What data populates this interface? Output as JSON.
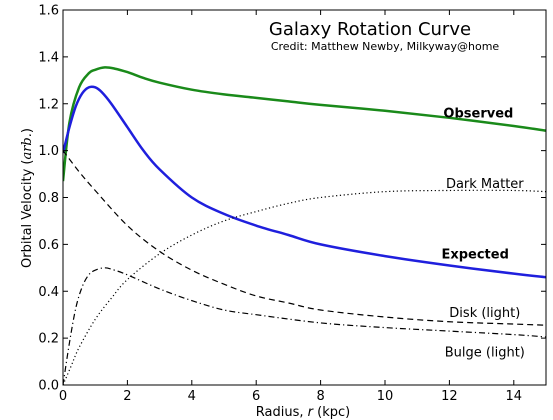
{
  "chart_data": {
    "type": "line",
    "title": "Galaxy Rotation Curve",
    "subtitle": "Credit:  Matthew Newby, Milkyway@home",
    "xlabel_prefix": "Radius, ",
    "xlabel_var": "r",
    "xlabel_suffix": " (kpc)",
    "ylabel_prefix": "Orbital Velocity (",
    "ylabel_unit": "arb.",
    "ylabel_suffix": ")",
    "xlim": [
      0,
      15
    ],
    "ylim": [
      0.0,
      1.6
    ],
    "xticks": [
      0,
      2,
      4,
      6,
      8,
      10,
      12,
      14
    ],
    "xtick_labels": [
      "0",
      "2",
      "4",
      "6",
      "8",
      "10",
      "12",
      "14"
    ],
    "yticks": [
      0.0,
      0.2,
      0.4,
      0.6,
      0.8,
      1.0,
      1.2,
      1.4,
      1.6
    ],
    "ytick_labels": [
      "0.0",
      "0.2",
      "0.4",
      "0.6",
      "0.8",
      "1.0",
      "1.2",
      "1.4",
      "1.6"
    ],
    "grid": false,
    "series": [
      {
        "name": "Observed",
        "color": "#1a8a1a",
        "style": "solid",
        "width": 2.5,
        "label_bold": true,
        "x": [
          0,
          0.2,
          0.5,
          0.8,
          1.0,
          1.3,
          1.6,
          2,
          2.5,
          3,
          4,
          5,
          6,
          7,
          8,
          10,
          12,
          14,
          15
        ],
        "y": [
          0.87,
          1.12,
          1.27,
          1.33,
          1.345,
          1.355,
          1.35,
          1.335,
          1.31,
          1.29,
          1.26,
          1.24,
          1.225,
          1.21,
          1.195,
          1.17,
          1.14,
          1.105,
          1.085
        ]
      },
      {
        "name": "Expected",
        "color": "#1f1fdd",
        "style": "solid",
        "width": 2.5,
        "label_bold": true,
        "x": [
          0,
          0.2,
          0.4,
          0.6,
          0.8,
          1.0,
          1.2,
          1.5,
          2,
          2.5,
          3,
          4,
          5,
          6,
          7,
          8,
          10,
          12,
          14,
          15
        ],
        "y": [
          0.99,
          1.1,
          1.19,
          1.245,
          1.27,
          1.27,
          1.25,
          1.2,
          1.1,
          1.0,
          0.92,
          0.8,
          0.73,
          0.68,
          0.64,
          0.6,
          0.55,
          0.51,
          0.475,
          0.46
        ]
      },
      {
        "name": "Dark Matter",
        "color": "#000000",
        "style": "dotted",
        "width": 1.2,
        "label_bold": false,
        "x": [
          0,
          0.25,
          0.5,
          1,
          1.5,
          2,
          3,
          4,
          5,
          6,
          7,
          8,
          10,
          12,
          14,
          15
        ],
        "y": [
          0.0,
          0.08,
          0.16,
          0.28,
          0.37,
          0.45,
          0.56,
          0.64,
          0.7,
          0.74,
          0.775,
          0.8,
          0.825,
          0.83,
          0.83,
          0.825
        ]
      },
      {
        "name": "Disk (light)",
        "color": "#000000",
        "style": "dashed",
        "width": 1.2,
        "label_bold": false,
        "x": [
          0,
          0.5,
          1,
          2,
          3,
          4,
          5,
          6,
          7,
          8,
          10,
          12,
          14,
          15
        ],
        "y": [
          1.0,
          0.91,
          0.83,
          0.68,
          0.57,
          0.49,
          0.43,
          0.38,
          0.35,
          0.32,
          0.29,
          0.27,
          0.26,
          0.255
        ]
      },
      {
        "name": "Bulge (light)",
        "color": "#000000",
        "style": "dashdot",
        "width": 1.2,
        "label_bold": false,
        "x": [
          0,
          0.2,
          0.4,
          0.6,
          0.8,
          1.0,
          1.3,
          1.6,
          2,
          3,
          4,
          5,
          6,
          8,
          10,
          12,
          14,
          15
        ],
        "y": [
          0.0,
          0.18,
          0.33,
          0.42,
          0.47,
          0.49,
          0.5,
          0.49,
          0.47,
          0.41,
          0.36,
          0.32,
          0.3,
          0.265,
          0.245,
          0.23,
          0.215,
          0.205
        ]
      }
    ],
    "annotations": [
      {
        "text": "Observed",
        "series": "Observed",
        "x": 12.9,
        "y": 1.16,
        "bold": true
      },
      {
        "text": "Dark Matter",
        "series": "Dark Matter",
        "x": 13.1,
        "y": 0.86,
        "bold": false
      },
      {
        "text": "Expected",
        "series": "Expected",
        "x": 12.8,
        "y": 0.56,
        "bold": true
      },
      {
        "text": "Disk (light)",
        "series": "Disk (light)",
        "x": 13.1,
        "y": 0.31,
        "bold": false
      },
      {
        "text": "Bulge (light)",
        "series": "Bulge (light)",
        "x": 13.1,
        "y": 0.14,
        "bold": false
      }
    ]
  }
}
